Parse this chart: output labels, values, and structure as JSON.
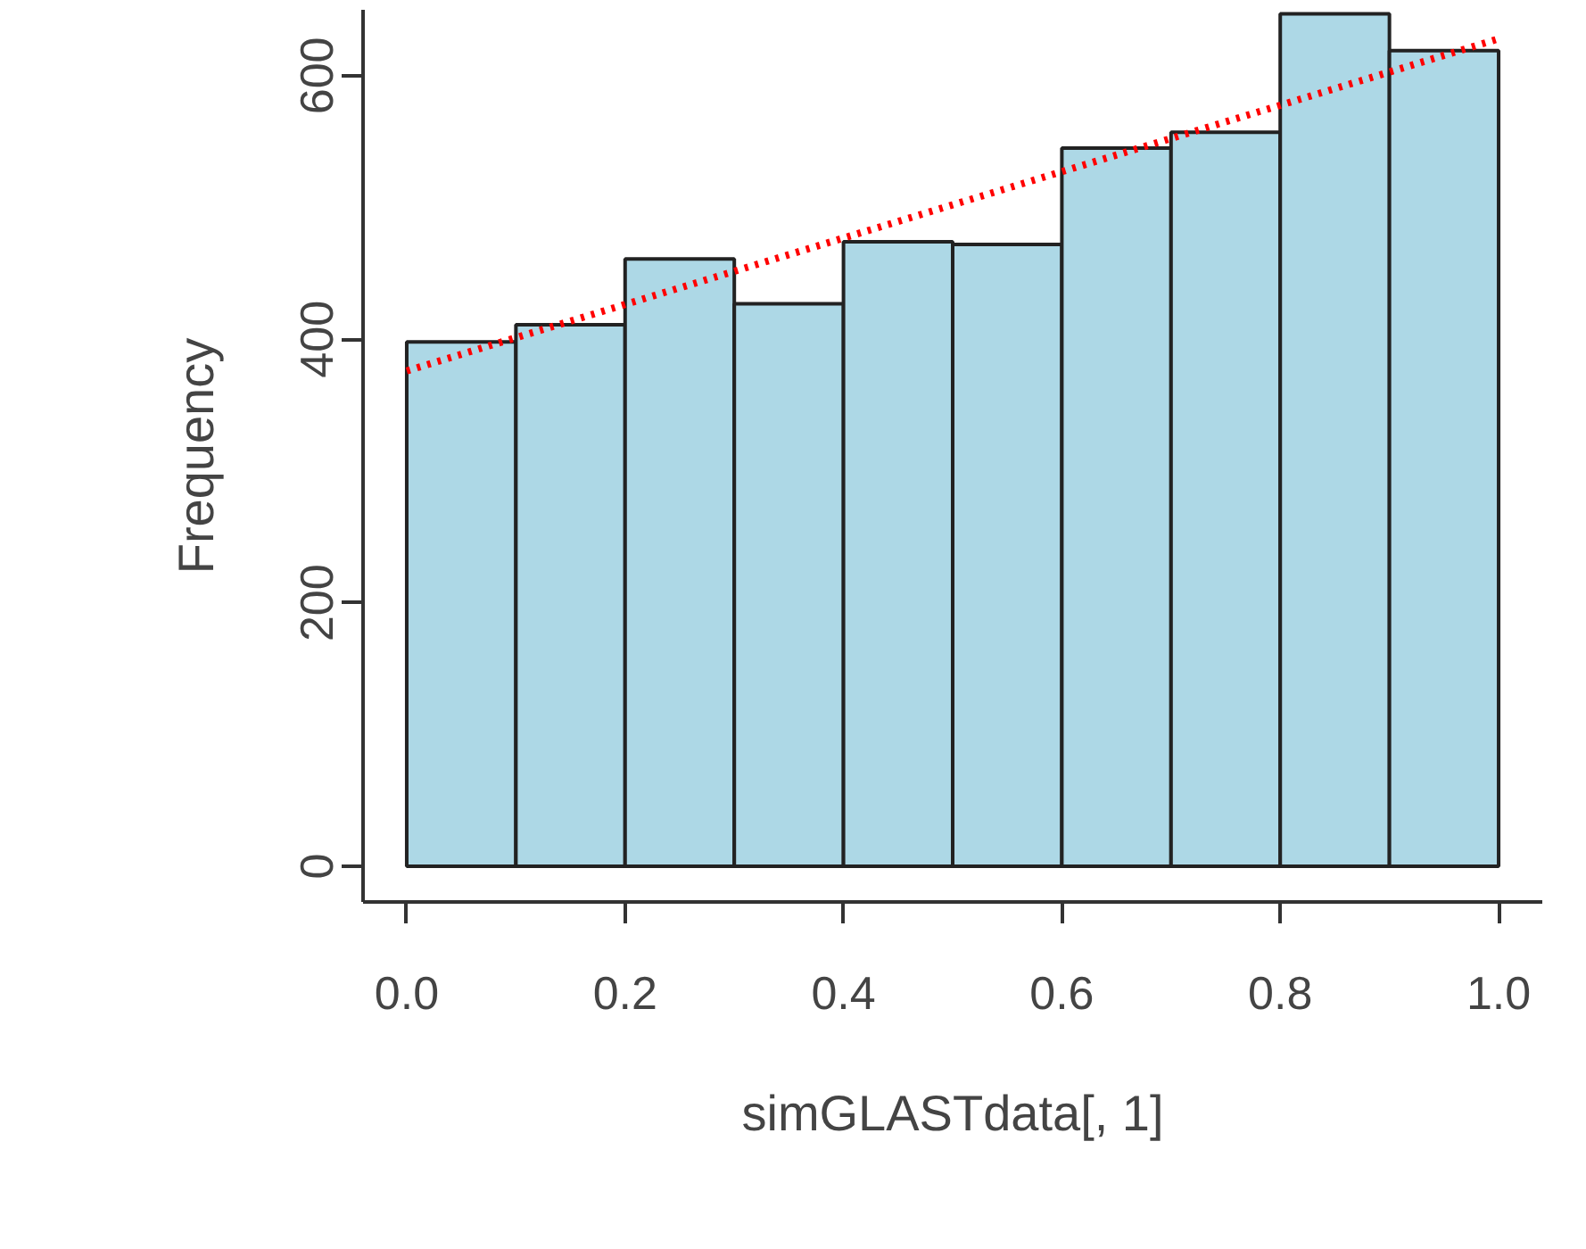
{
  "chart_data": {
    "type": "histogram",
    "xlabel": "simGLASTdata[, 1]",
    "ylabel": "Frequency",
    "bins": [
      0.0,
      0.1,
      0.2,
      0.3,
      0.4,
      0.5,
      0.6,
      0.7,
      0.8,
      0.9,
      1.0
    ],
    "series": [
      {
        "color": "#add8e6",
        "values": [
          398,
          411,
          461,
          427,
          474,
          472,
          545,
          557,
          647,
          619
        ]
      },
      {
        "type": "line",
        "color": "#ff0000",
        "line_style": "dotted",
        "marker": "none",
        "x": [
          0.0,
          0.25,
          0.5,
          0.75,
          1.0
        ],
        "values": [
          376,
          439,
          502,
          565,
          628
        ]
      }
    ],
    "xlim": [
      -0.04,
      1.04
    ],
    "ylim": [
      -27,
      650
    ],
    "xticks": [
      {
        "value": 0.0,
        "label": "0.0"
      },
      0.2,
      0.4,
      0.6,
      0.8,
      {
        "value": 1.0,
        "label": "1.0"
      }
    ],
    "yticks": [
      0,
      200,
      400,
      600
    ],
    "grid": false
  }
}
